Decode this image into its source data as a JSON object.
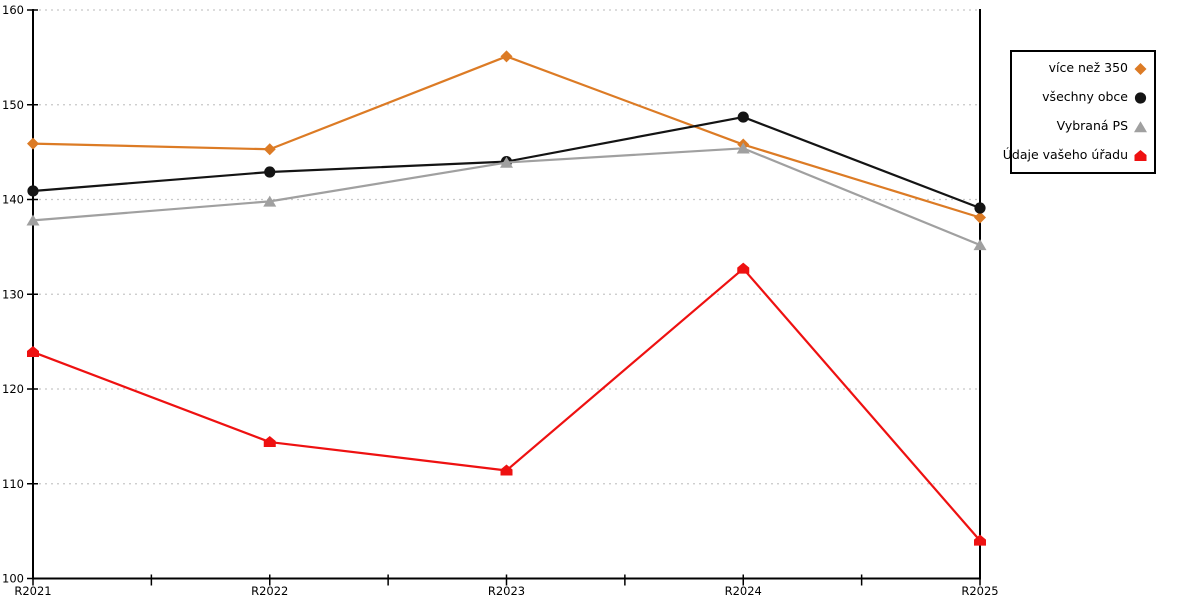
{
  "chart_data": {
    "type": "line",
    "title": "",
    "xlabel": "",
    "ylabel": "",
    "categories": [
      "R2021",
      "R2022",
      "R2023",
      "R2024",
      "R2025"
    ],
    "y_ticks": [
      "100",
      "110",
      "120",
      "130",
      "140",
      "150",
      "160"
    ],
    "ylim": [
      100,
      160
    ],
    "grid": "horizontal dotted lines at every 10 units",
    "legend_position": "right",
    "series": [
      {
        "name": "více než 350",
        "marker": "diamond",
        "color": "#DC7B25",
        "values": [
          145.9,
          145.3,
          155.1,
          145.8,
          138.1
        ]
      },
      {
        "name": "všechny obce",
        "marker": "circle",
        "color": "#141414",
        "values": [
          140.9,
          142.9,
          144.0,
          148.7,
          139.1
        ]
      },
      {
        "name": "Vybraná PS",
        "marker": "triangle",
        "color": "#A0A0A0",
        "values": [
          137.8,
          139.8,
          143.9,
          145.4,
          135.2
        ]
      },
      {
        "name": "Údaje vašeho úřadu",
        "marker": "pentagon",
        "color": "#EE1111",
        "values": [
          123.9,
          114.4,
          111.4,
          132.7,
          104.0
        ]
      }
    ]
  },
  "colors": {
    "axis": "#000000",
    "gridline": "#c8c8c8",
    "background": "#ffffff",
    "legend_border": "#000000",
    "tick_label": "#000000"
  }
}
